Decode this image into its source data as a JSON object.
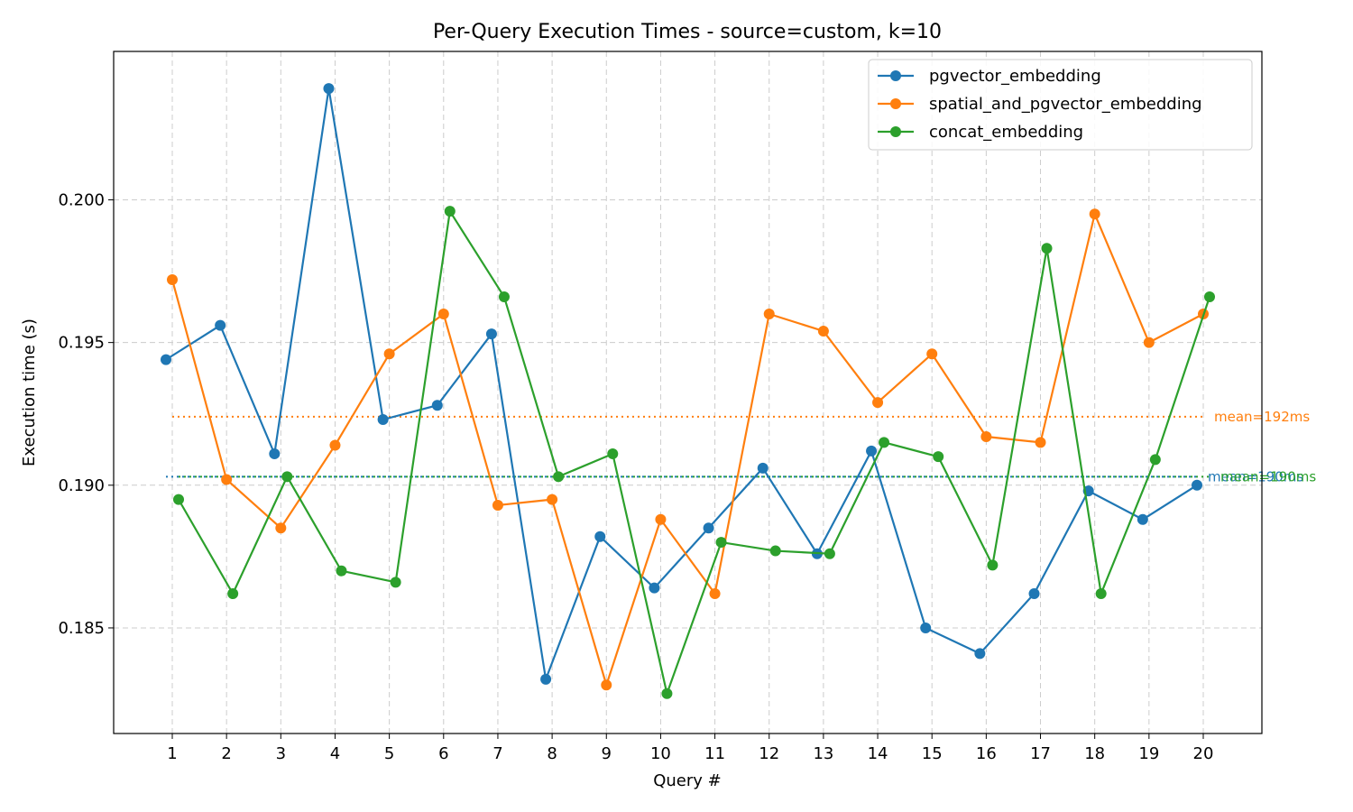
{
  "chart_data": {
    "type": "line",
    "title": "Per-Query Execution Times - source=custom, k=10",
    "xlabel": "Query #",
    "ylabel": "Execution time (s)",
    "x": [
      1,
      2,
      3,
      4,
      5,
      6,
      7,
      8,
      9,
      10,
      11,
      12,
      13,
      14,
      15,
      16,
      17,
      18,
      19,
      20
    ],
    "ylim": [
      0.1813,
      0.2052
    ],
    "yticks": [
      "0.185",
      "0.190",
      "0.195",
      "0.200"
    ],
    "ytick_values": [
      0.185,
      0.19,
      0.195,
      0.2
    ],
    "grid": true,
    "legend_position": "top-right",
    "series": [
      {
        "name": "pgvector_embedding",
        "color": "#1f77b4",
        "values": [
          0.1944,
          0.1956,
          0.1911,
          0.2039,
          0.1923,
          0.1928,
          0.1953,
          0.1832,
          0.1882,
          0.1864,
          0.1885,
          0.1906,
          0.1876,
          0.1912,
          0.185,
          0.1841,
          0.1862,
          0.1898,
          0.1888,
          0.19
        ],
        "mean_label": "mean=190ms",
        "mean_value": 0.1903
      },
      {
        "name": "spatial_and_pgvector_embedding",
        "color": "#ff7f0e",
        "values": [
          0.1972,
          0.1902,
          0.1885,
          0.1914,
          0.1946,
          0.196,
          0.1893,
          0.1895,
          0.183,
          0.1888,
          0.1862,
          0.196,
          0.1954,
          0.1929,
          0.1946,
          0.1917,
          0.1915,
          0.1995,
          0.195,
          0.196
        ],
        "mean_label": "mean=192ms",
        "mean_value": 0.1924
      },
      {
        "name": "concat_embedding",
        "color": "#2ca02c",
        "values": [
          0.1895,
          0.1862,
          0.1903,
          0.187,
          0.1866,
          0.1996,
          0.1966,
          0.1903,
          0.1911,
          0.1827,
          0.188,
          0.1877,
          0.1876,
          0.1915,
          0.191,
          0.1872,
          0.1983,
          0.1862,
          0.1909,
          0.1966
        ],
        "mean_label": "mean=190ms",
        "mean_value": 0.1903
      }
    ]
  }
}
